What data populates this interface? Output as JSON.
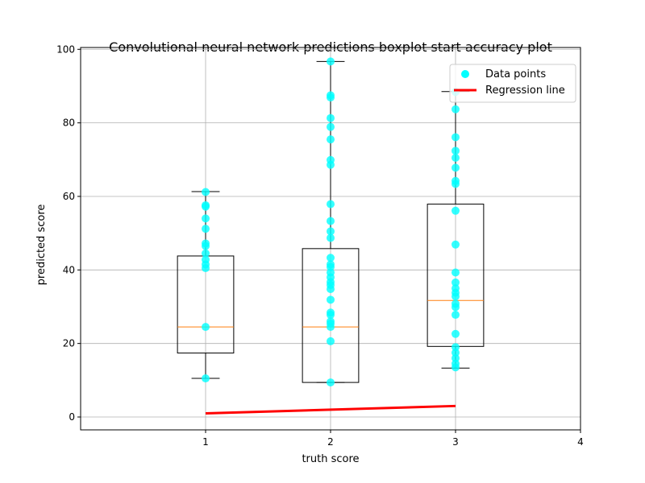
{
  "chart_data": {
    "type": "boxplot",
    "title": "Convolutional neural network predictions boxplot start accuracy plot",
    "xlabel": "truth score",
    "ylabel": "predicted score",
    "xlim": [
      0,
      4
    ],
    "ylim": [
      -3.5,
      100.5
    ],
    "xticks": [
      1,
      2,
      3,
      4
    ],
    "yticks": [
      0,
      20,
      40,
      60,
      80,
      100
    ],
    "grid": true,
    "legend_position": "top-right",
    "legend": [
      {
        "label": "Data points",
        "kind": "marker",
        "color": "#00ffff"
      },
      {
        "label": "Regression line",
        "kind": "line",
        "color": "#ff0000"
      }
    ],
    "boxes": [
      {
        "x": 1,
        "whisker_low": 10.5,
        "q1": 17.4,
        "median": 24.5,
        "q3": 43.8,
        "whisker_high": 61.3
      },
      {
        "x": 2,
        "whisker_low": 9.4,
        "q1": 9.4,
        "median": 24.5,
        "q3": 45.8,
        "whisker_high": 96.7
      },
      {
        "x": 3,
        "whisker_low": 13.3,
        "q1": 19.2,
        "median": 31.7,
        "q3": 57.9,
        "whisker_high": 88.5
      }
    ],
    "series": [
      {
        "name": "Data points",
        "type": "scatter",
        "color": "#00ffff",
        "points": [
          {
            "x": 1,
            "y": 10.5
          },
          {
            "x": 1,
            "y": 24.5
          },
          {
            "x": 1,
            "y": 40.5
          },
          {
            "x": 1,
            "y": 41.5
          },
          {
            "x": 1,
            "y": 42.8
          },
          {
            "x": 1,
            "y": 44.5
          },
          {
            "x": 1,
            "y": 46.5
          },
          {
            "x": 1,
            "y": 47.2
          },
          {
            "x": 1,
            "y": 51.2
          },
          {
            "x": 1,
            "y": 54.0
          },
          {
            "x": 1,
            "y": 57.2
          },
          {
            "x": 1,
            "y": 57.6
          },
          {
            "x": 1,
            "y": 61.2
          },
          {
            "x": 2,
            "y": 9.4
          },
          {
            "x": 2,
            "y": 20.6
          },
          {
            "x": 2,
            "y": 24.5
          },
          {
            "x": 2,
            "y": 25.4
          },
          {
            "x": 2,
            "y": 26.0
          },
          {
            "x": 2,
            "y": 27.8
          },
          {
            "x": 2,
            "y": 28.4
          },
          {
            "x": 2,
            "y": 31.9
          },
          {
            "x": 2,
            "y": 34.8
          },
          {
            "x": 2,
            "y": 35.9
          },
          {
            "x": 2,
            "y": 36.7
          },
          {
            "x": 2,
            "y": 38.0
          },
          {
            "x": 2,
            "y": 39.3
          },
          {
            "x": 2,
            "y": 40.8
          },
          {
            "x": 2,
            "y": 41.5
          },
          {
            "x": 2,
            "y": 43.3
          },
          {
            "x": 2,
            "y": 48.7
          },
          {
            "x": 2,
            "y": 50.5
          },
          {
            "x": 2,
            "y": 53.3
          },
          {
            "x": 2,
            "y": 57.9
          },
          {
            "x": 2,
            "y": 68.6
          },
          {
            "x": 2,
            "y": 69.9
          },
          {
            "x": 2,
            "y": 75.5
          },
          {
            "x": 2,
            "y": 78.9
          },
          {
            "x": 2,
            "y": 81.3
          },
          {
            "x": 2,
            "y": 86.9
          },
          {
            "x": 2,
            "y": 87.5
          },
          {
            "x": 2,
            "y": 96.7
          },
          {
            "x": 3,
            "y": 13.5
          },
          {
            "x": 3,
            "y": 14.5
          },
          {
            "x": 3,
            "y": 16.0
          },
          {
            "x": 3,
            "y": 17.5
          },
          {
            "x": 3,
            "y": 19.0
          },
          {
            "x": 3,
            "y": 22.6
          },
          {
            "x": 3,
            "y": 27.8
          },
          {
            "x": 3,
            "y": 29.9
          },
          {
            "x": 3,
            "y": 30.8
          },
          {
            "x": 3,
            "y": 32.8
          },
          {
            "x": 3,
            "y": 33.8
          },
          {
            "x": 3,
            "y": 35.0
          },
          {
            "x": 3,
            "y": 36.6
          },
          {
            "x": 3,
            "y": 39.3
          },
          {
            "x": 3,
            "y": 46.9
          },
          {
            "x": 3,
            "y": 56.1
          },
          {
            "x": 3,
            "y": 63.4
          },
          {
            "x": 3,
            "y": 64.2
          },
          {
            "x": 3,
            "y": 67.8
          },
          {
            "x": 3,
            "y": 70.5
          },
          {
            "x": 3,
            "y": 72.4
          },
          {
            "x": 3,
            "y": 76.1
          },
          {
            "x": 3,
            "y": 83.7
          },
          {
            "x": 3,
            "y": 88.4
          }
        ]
      },
      {
        "name": "Regression line",
        "type": "line",
        "color": "#ff0000",
        "x": [
          1,
          3
        ],
        "y": [
          1.0,
          3.0
        ]
      }
    ]
  }
}
